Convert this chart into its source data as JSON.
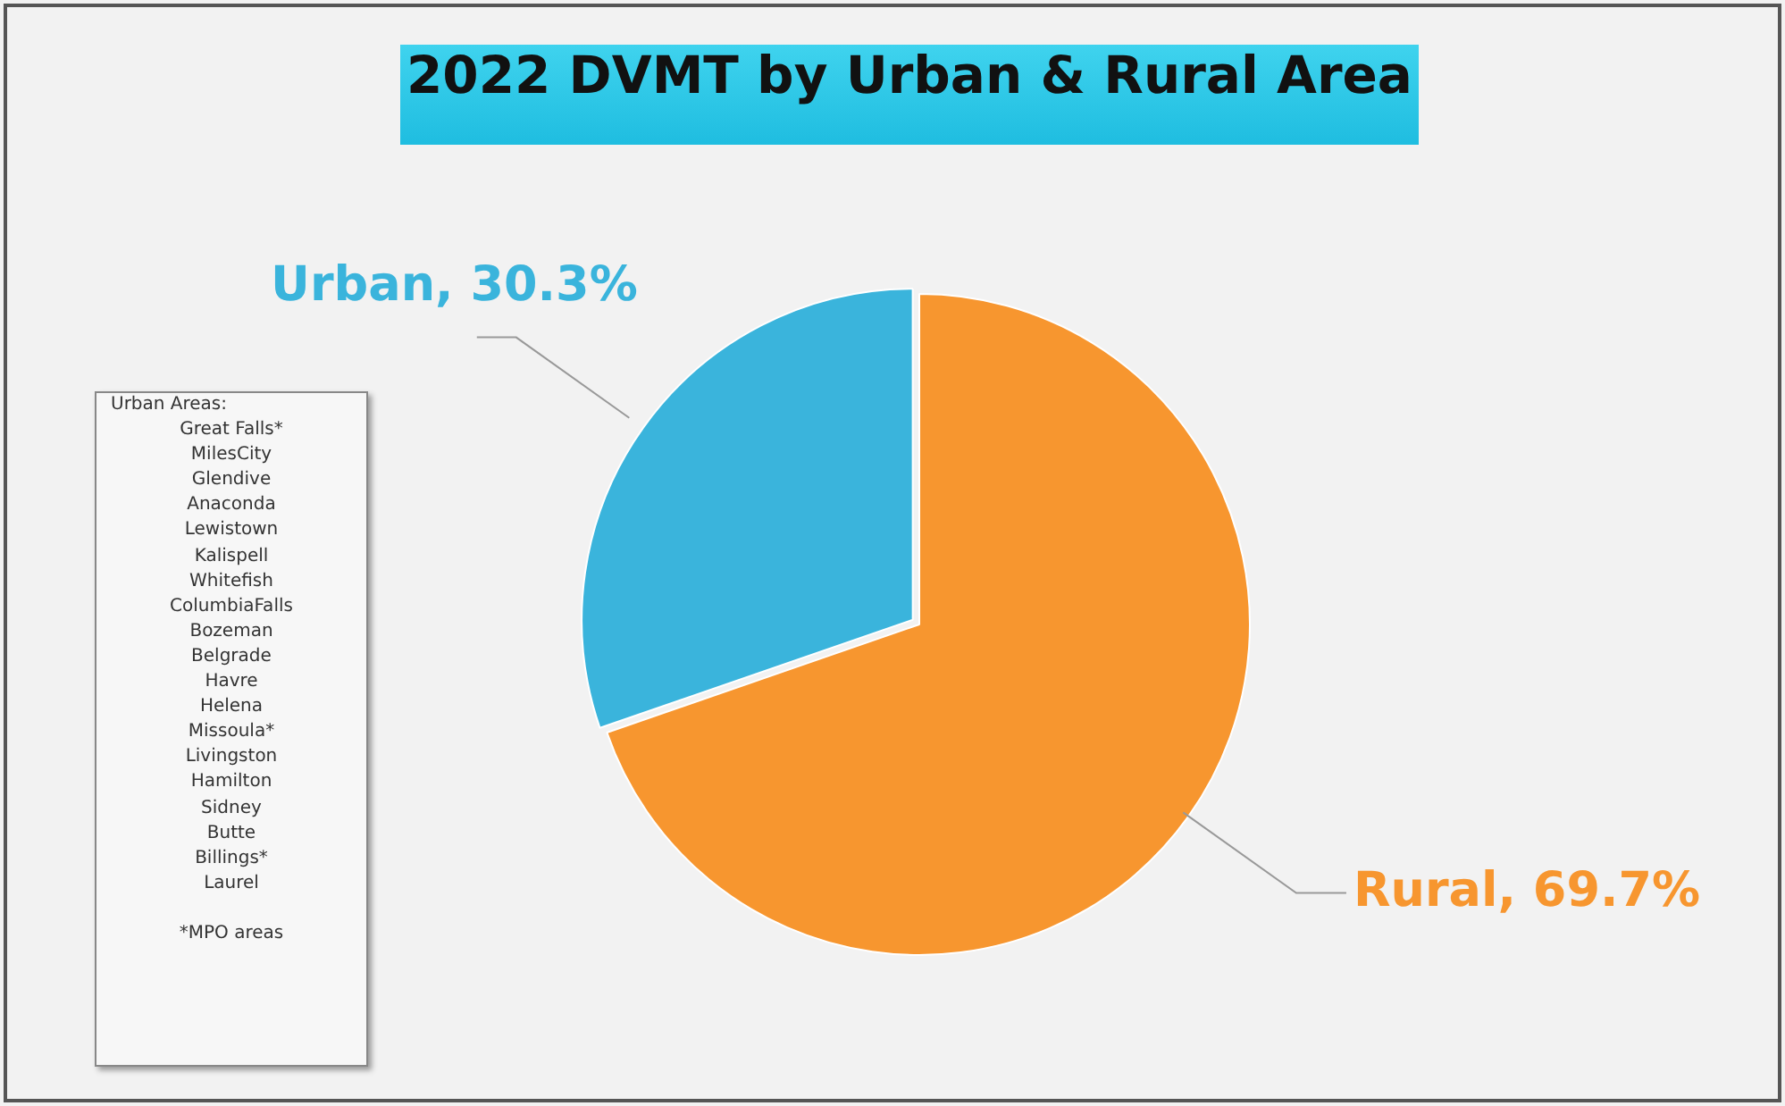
{
  "chart_data": {
    "type": "pie",
    "title": "2022 DVMT by Urban & Rural Area",
    "categories": [
      "Rural",
      "Urban"
    ],
    "values": [
      69.7,
      30.3
    ],
    "colors": [
      "#f7962f",
      "#3ab4dc"
    ],
    "value_labels": [
      "69.7%",
      "30.3%"
    ],
    "legend": false,
    "annotations": [
      "Urban Areas:",
      "Great Falls*",
      "MilesCity",
      "Glendive",
      "Anaconda",
      "Lewistown",
      "Kalispell",
      "Whitefish",
      "ColumbiaFalls",
      "Bozeman",
      "Belgrade",
      "Havre",
      "Helena",
      "Missoula*",
      "Livingston",
      "Hamilton",
      "Sidney",
      "Butte",
      "Billings*",
      "Laurel",
      "*MPO areas"
    ]
  }
}
